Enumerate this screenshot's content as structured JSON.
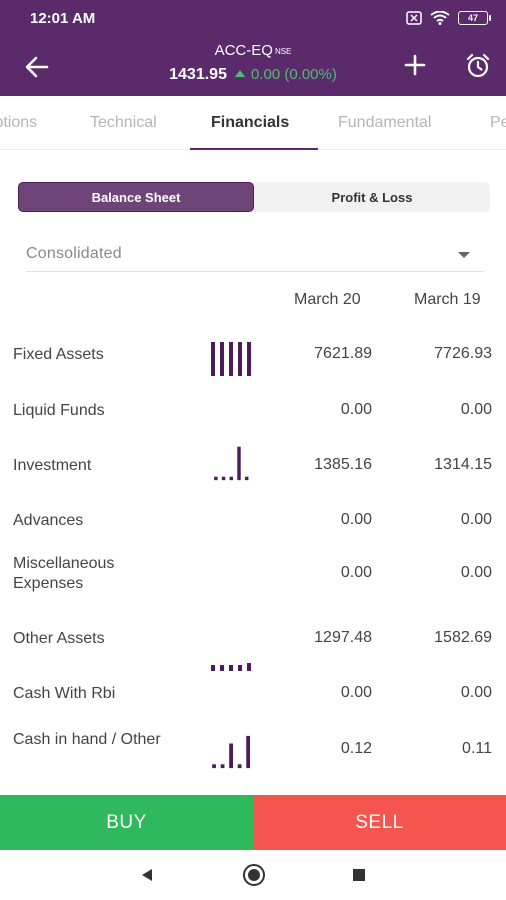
{
  "status_bar": {
    "time": "12:01 AM",
    "battery": "47"
  },
  "header": {
    "symbol": "ACC-EQ",
    "exchange": "NSE",
    "price": "1431.95",
    "change": "0.00 (0.00%)"
  },
  "tabs": [
    {
      "label": "Options"
    },
    {
      "label": "Technical"
    },
    {
      "label": "Financials"
    },
    {
      "label": "Fundamental"
    },
    {
      "label": "Pe"
    }
  ],
  "segment": {
    "balance_sheet": "Balance Sheet",
    "profit_loss": "Profit & Loss"
  },
  "dropdown": {
    "value": "Consolidated"
  },
  "columns": [
    "March 20",
    "March 19"
  ],
  "rows": [
    {
      "label": "Fixed Assets",
      "v1": "7621.89",
      "v2": "7726.93"
    },
    {
      "label": "Liquid Funds",
      "v1": "0.00",
      "v2": "0.00"
    },
    {
      "label": "Investment",
      "v1": "1385.16",
      "v2": "1314.15"
    },
    {
      "label": "Advances",
      "v1": "0.00",
      "v2": "0.00"
    },
    {
      "label": "Miscellaneous Expenses",
      "v1": "0.00",
      "v2": "0.00"
    },
    {
      "label": "Other Assets",
      "v1": "1297.48",
      "v2": "1582.69"
    },
    {
      "label": "Cash With Rbi",
      "v1": "0.00",
      "v2": "0.00"
    },
    {
      "label": "Cash in hand / Other",
      "v1": "0.12",
      "v2": "0.11"
    }
  ],
  "actions": {
    "buy": "BUY",
    "sell": "SELL"
  },
  "colors": {
    "brand": "#5a2a6a",
    "buy": "#2fb85c",
    "sell": "#f5554f",
    "spark": "#4a1d5a"
  },
  "icons": [
    "back-arrow-icon",
    "plus-icon",
    "alarm-clock-icon",
    "wifi-icon",
    "sim-icon",
    "back-triangle-icon",
    "home-circle-icon",
    "recents-square-icon"
  ]
}
